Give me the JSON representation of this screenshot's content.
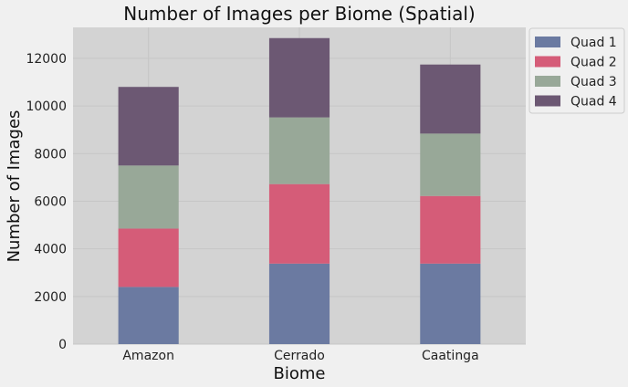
{
  "chart_data": {
    "type": "bar",
    "stacked": true,
    "title": "Number of Images per Biome (Spatial)",
    "xlabel": "Biome",
    "ylabel": "Number of Images",
    "categories": [
      "Amazon",
      "Cerrado",
      "Caatinga"
    ],
    "ylim": [
      0,
      13300
    ],
    "yticks": [
      0,
      2000,
      4000,
      6000,
      8000,
      10000,
      12000
    ],
    "grid": true,
    "legend_position": "outside-top-right",
    "series": [
      {
        "name": "Quad 1",
        "color": "#6b7aa1",
        "values": [
          2400,
          3380,
          3380
        ]
      },
      {
        "name": "Quad 2",
        "color": "#d55c78",
        "values": [
          2450,
          3340,
          2840
        ]
      },
      {
        "name": "Quad 3",
        "color": "#98a898",
        "values": [
          2650,
          2800,
          2620
        ]
      },
      {
        "name": "Quad 4",
        "color": "#6c5873",
        "values": [
          3300,
          3330,
          2900
        ]
      }
    ]
  }
}
